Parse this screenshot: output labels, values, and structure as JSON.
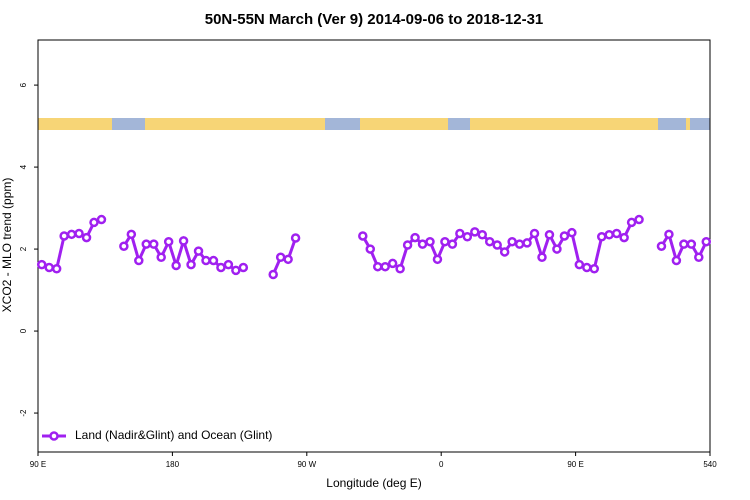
{
  "chart_data": {
    "type": "line",
    "title": "50N-55N March (Ver 9)   2014-09-06 to 2018-12-31",
    "x_label": "Longitude (deg E)",
    "y_label": "XCO2 - MLO trend (ppm)",
    "x": [
      92.5,
      97.5,
      102.5,
      107.5,
      112.5,
      117.5,
      122.5,
      127.5,
      132.5,
      137.5,
      142.5,
      147.5,
      152.5,
      157.5,
      162.5,
      167.5,
      172.5,
      177.5,
      182.5,
      187.5,
      192.5,
      197.5,
      202.5,
      207.5,
      212.5,
      217.5,
      222.5,
      227.5,
      232.5,
      237.5,
      242.5,
      247.5,
      252.5,
      257.5,
      262.5,
      267.5,
      272.5,
      277.5,
      282.5,
      287.5,
      292.5,
      297.5,
      302.5,
      307.5,
      312.5,
      317.5,
      322.5,
      327.5,
      332.5,
      337.5,
      342.5,
      347.5,
      352.5,
      357.5,
      362.5,
      367.5,
      372.5,
      377.5,
      382.5,
      387.5,
      392.5,
      397.5,
      402.5,
      407.5,
      412.5,
      417.5,
      422.5,
      427.5,
      432.5,
      437.5,
      442.5,
      447.5,
      452.5,
      457.5,
      462.5,
      467.5,
      472.5,
      477.5,
      482.5,
      487.5,
      492.5,
      497.5,
      502.5,
      507.5,
      512.5,
      517.5,
      522.5,
      527.5,
      532.5,
      537.5
    ],
    "series": [
      {
        "name": "Land (Nadir&Glint) and Ocean (Glint)",
        "color": "#a020f0",
        "values": [
          1.62,
          1.55,
          1.52,
          2.32,
          2.36,
          2.38,
          2.28,
          2.65,
          2.72,
          null,
          null,
          2.07,
          2.36,
          1.72,
          2.12,
          2.12,
          1.8,
          2.18,
          1.6,
          2.2,
          1.62,
          1.95,
          1.72,
          1.72,
          1.55,
          1.62,
          1.48,
          1.55,
          null,
          null,
          null,
          1.38,
          1.8,
          1.75,
          2.27,
          null,
          null,
          null,
          null,
          null,
          null,
          null,
          null,
          2.32,
          2.0,
          1.57,
          1.57,
          1.65,
          1.52,
          2.1,
          2.28,
          2.12,
          2.18,
          1.75,
          2.18,
          2.12,
          2.38,
          2.3,
          2.42,
          2.35,
          2.18,
          2.1,
          1.93,
          2.18,
          2.12,
          2.15,
          2.38,
          1.8,
          2.35,
          2.0,
          2.32,
          2.4,
          1.62,
          1.55,
          1.52,
          2.3,
          2.35,
          2.38,
          2.28,
          2.65,
          2.72,
          null,
          null,
          2.07,
          2.36,
          1.72,
          2.12,
          2.12,
          1.8,
          2.18
        ]
      }
    ],
    "xlim": [
      90,
      540
    ],
    "xticks": [
      {
        "value": 90,
        "label": "90 E"
      },
      180,
      {
        "value": 270,
        "label": "90 W"
      },
      {
        "value": 360,
        "label": "0"
      },
      {
        "value": 450,
        "label": "90 E"
      },
      540
    ],
    "ylim": [
      -2.95,
      7.1
    ],
    "yticks": [
      -2,
      0,
      2,
      4,
      6
    ],
    "legend": "bottom left"
  }
}
